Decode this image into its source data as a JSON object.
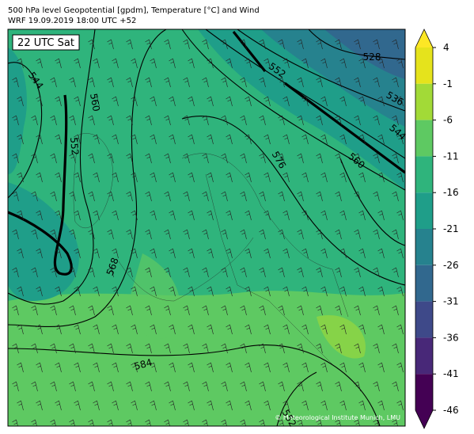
{
  "header": {
    "title": "500 hPa level Geopotential [gpdm], Temperature [°C] and Wind",
    "subtitle": "WRF 19.09.2019 18:00 UTC +52"
  },
  "map": {
    "time_label": "22 UTC Sat",
    "credit": "© Meteorological Institute Munich, LMU",
    "contour_labels": [
      "528",
      "536",
      "544",
      "552",
      "560",
      "576",
      "544",
      "560",
      "552",
      "568",
      "584",
      "552"
    ]
  },
  "colorbar": {
    "ticks": [
      4,
      -1,
      -6,
      -11,
      -16,
      -21,
      -26,
      -31,
      -36,
      -41,
      -46
    ],
    "colors": [
      "#e5e31c",
      "#a2da37",
      "#5ec962",
      "#2fb47c",
      "#1f9e89",
      "#26828e",
      "#31688e",
      "#3e4989",
      "#482878",
      "#440154"
    ],
    "over_color": "#fde725",
    "under_color": "#440154"
  }
}
